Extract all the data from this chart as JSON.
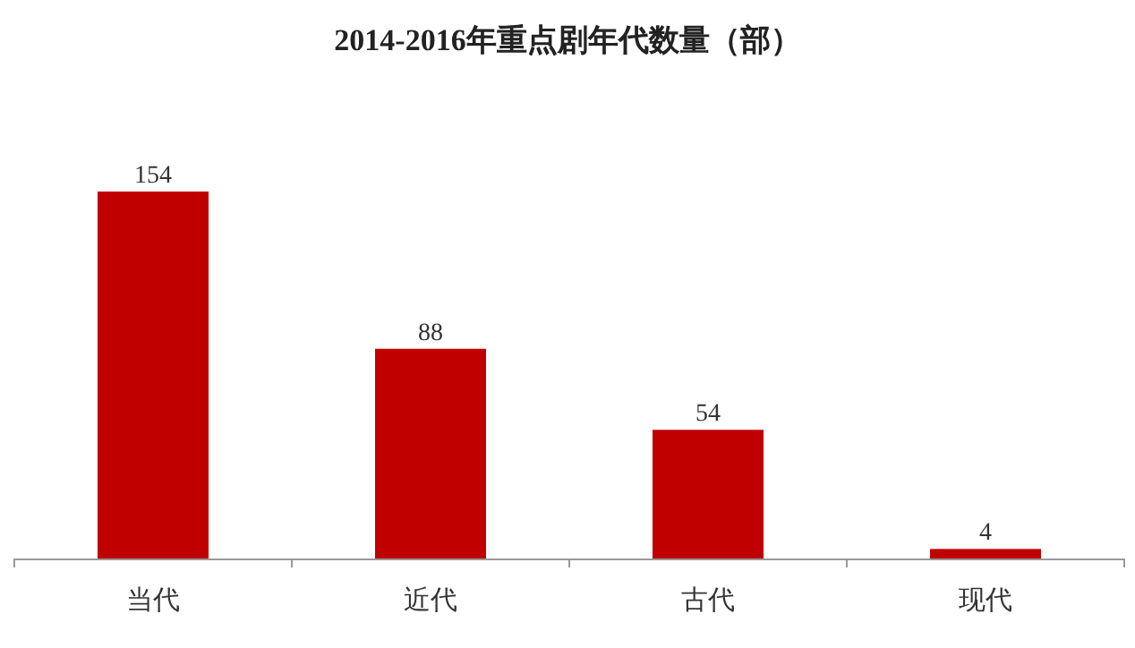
{
  "chart_data": {
    "type": "bar",
    "title": "2014-2016年重点剧年代数量（部）",
    "categories": [
      "当代",
      "近代",
      "古代",
      "现代"
    ],
    "values": [
      154,
      88,
      54,
      4
    ],
    "color": "#c00000",
    "data_labels": true,
    "grid": false,
    "legend": false
  }
}
